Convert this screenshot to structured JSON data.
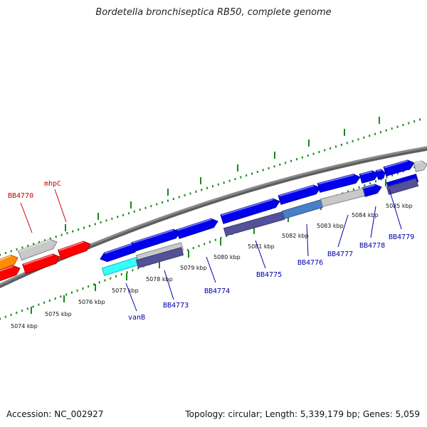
{
  "title": "Bordetella bronchiseptica RB50, complete genome",
  "footer": {
    "accession": "Accession: NC_002927",
    "summary": "Topology: circular; Length: 5,339,179 bp; Genes: 5,059"
  },
  "colors": {
    "backbone": "#8a8a8a",
    "tick": "#1a8a1a",
    "top_label": "#cc0000",
    "bottom_label": "#0000aa"
  },
  "ticks": [
    {
      "label": "5074 kbp"
    },
    {
      "label": "5075 kbp"
    },
    {
      "label": "5076 kbp"
    },
    {
      "label": "5077 kbp"
    },
    {
      "label": "5078 kbp"
    },
    {
      "label": "5079 kbp"
    },
    {
      "label": "5080 kbp"
    },
    {
      "label": "5081 kbp"
    },
    {
      "label": "5082 kbp"
    },
    {
      "label": "5083 kbp"
    },
    {
      "label": "5084 kbp"
    },
    {
      "label": "5085 kbp"
    }
  ],
  "genes_plus": [
    {
      "color": "#ff8c00"
    },
    {
      "color": "#ff0000"
    },
    {
      "color": "#c8c8c8"
    },
    {
      "color": "#ff0000"
    },
    {
      "color": "#ff0000"
    }
  ],
  "genes_minus": [
    {
      "color": "#0000ee"
    },
    {
      "color": "#0000ee"
    },
    {
      "color": "#0000ee"
    },
    {
      "color": "#0000ee"
    },
    {
      "color": "#0000ee"
    },
    {
      "color": "#0000ee"
    },
    {
      "color": "#0000ee"
    },
    {
      "color": "#0000ee"
    },
    {
      "color": "#0000ee"
    },
    {
      "color": "#0000ee"
    },
    {
      "color": "#c8c8c8"
    }
  ],
  "features": [
    {
      "color": "#33ffff"
    },
    {
      "color": "#c8c8c8"
    },
    {
      "color": "#55509a"
    },
    {
      "color": "#55509a"
    },
    {
      "color": "#4a7fc8"
    },
    {
      "color": "#c8c8c8"
    },
    {
      "color": "#0000ee"
    },
    {
      "color": "#55509a"
    }
  ],
  "gene_labels_top": [
    {
      "text": "BB4770"
    },
    {
      "text": "mhpC"
    }
  ],
  "gene_labels_bottom": [
    {
      "text": "vanB"
    },
    {
      "text": "BB4773"
    },
    {
      "text": "BB4774"
    },
    {
      "text": "BB4775"
    },
    {
      "text": "BB4776"
    },
    {
      "text": "BB4777"
    },
    {
      "text": "BB4778"
    },
    {
      "text": "BB4779"
    }
  ]
}
